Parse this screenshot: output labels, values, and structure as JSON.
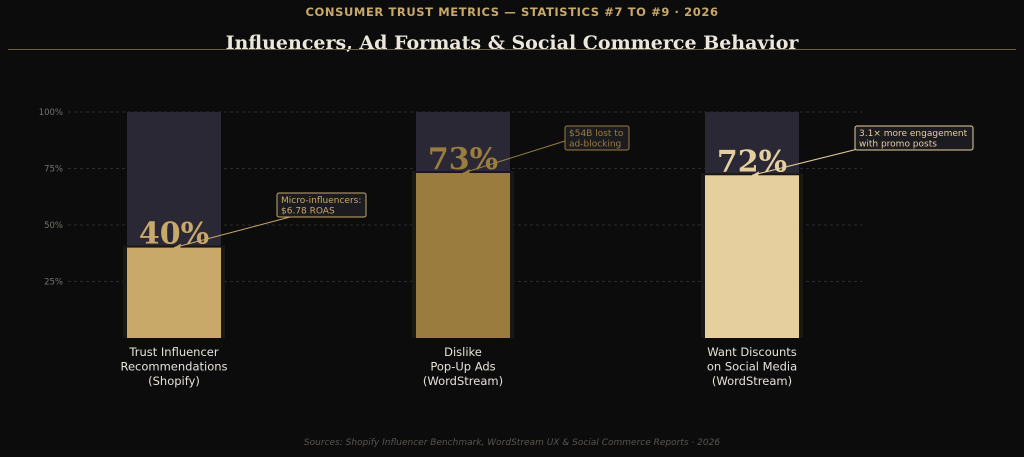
{
  "header": {
    "supertitle": "CONSUMER TRUST METRICS — STATISTICS #7 TO #9 · 2026",
    "title": "Influencers, Ad Formats & Social Commerce Behavior"
  },
  "footer": {
    "sources": "Sources: Shopify Influencer Benchmark, WordStream UX & Social Commerce Reports · 2026"
  },
  "chart_data": {
    "type": "bar",
    "categories": [
      [
        "Trust Influencer",
        "Recommendations",
        "(Shopify)"
      ],
      [
        "Dislike",
        "Pop-Up Ads",
        "(WordStream)"
      ],
      [
        "Want Discounts",
        "on Social Media",
        "(WordStream)"
      ]
    ],
    "values": [
      40,
      73,
      72
    ],
    "value_labels": [
      "40%",
      "73%",
      "72%"
    ],
    "ylim": [
      0,
      100
    ],
    "yticks": [
      25,
      50,
      75,
      100
    ],
    "ytick_labels": [
      "25%",
      "50%",
      "75%",
      "100%"
    ],
    "grid": true,
    "bar_colors": [
      "#c9a96a",
      "#9a7d3e",
      "#e6cf9f"
    ],
    "value_label_colors": [
      "#c9a96a",
      "#9a7d3e",
      "#e6cf9f"
    ],
    "background_track_color": "#2a2835",
    "annotations": [
      {
        "bar": 0,
        "lines": [
          "Micro-influencers:",
          "$6.78 ROAS"
        ],
        "text_color": "#c9a96a"
      },
      {
        "bar": 1,
        "lines": [
          "$54B lost to",
          "ad-blocking"
        ],
        "text_color": "#9a7d3e"
      },
      {
        "bar": 2,
        "lines": [
          "3.1× more engagement",
          "with promo posts"
        ],
        "text_color": "#e6cf9f"
      }
    ]
  }
}
